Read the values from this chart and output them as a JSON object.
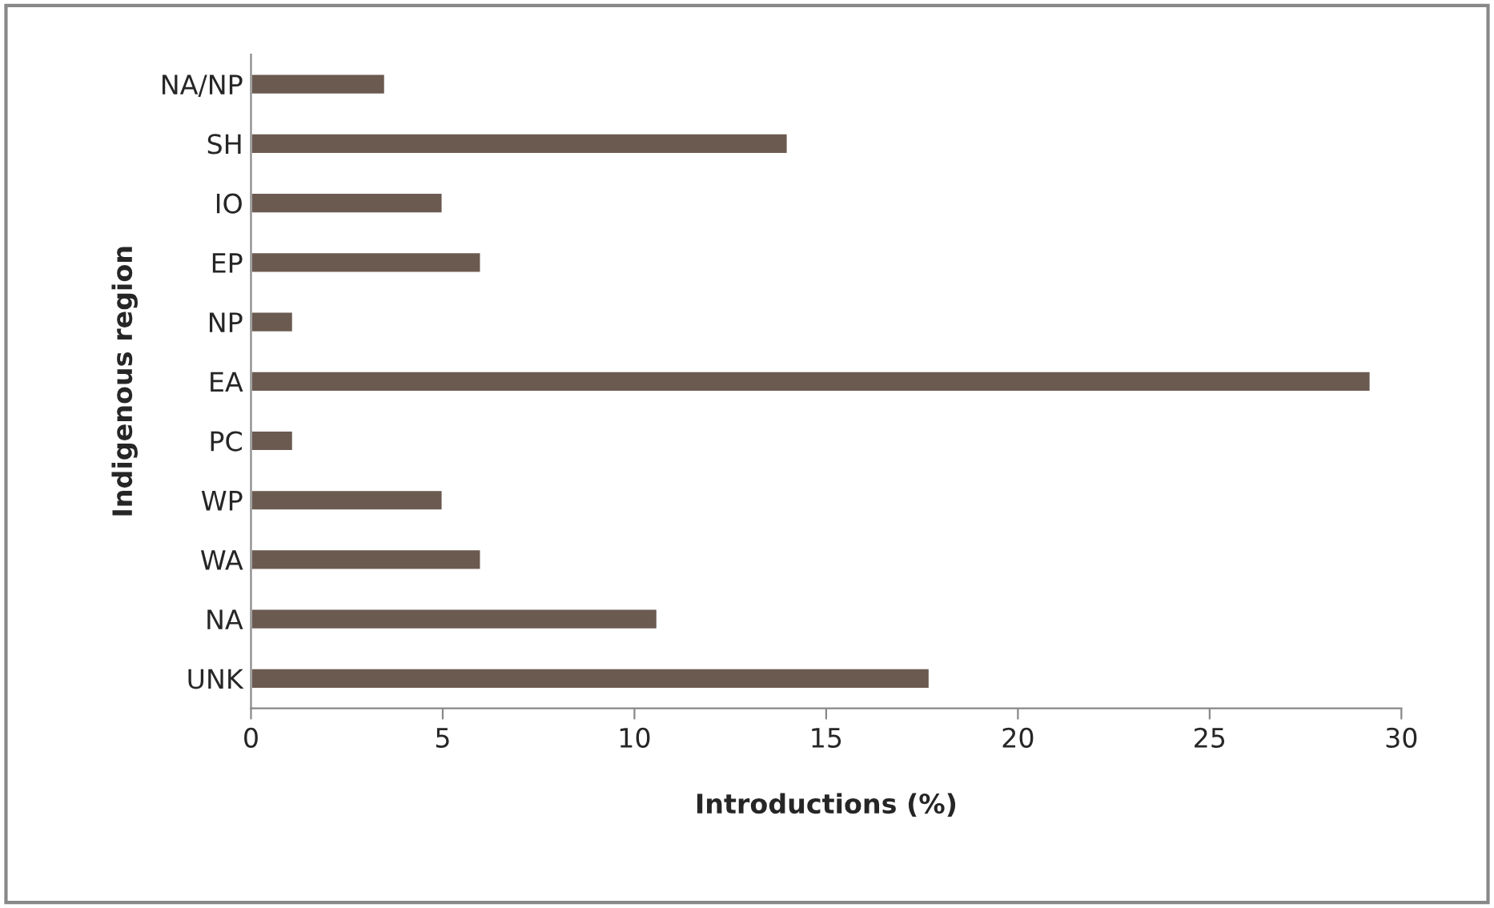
{
  "chart_data": {
    "type": "bar",
    "orientation": "horizontal",
    "xlabel": "Introductions (%)",
    "ylabel": "Indigenous region",
    "categories": [
      "NA/NP",
      "SH",
      "IO",
      "EP",
      "NP",
      "EA",
      "PC",
      "WP",
      "WA",
      "NA",
      "UNK"
    ],
    "values": [
      3.5,
      14.0,
      5.0,
      6.0,
      1.1,
      29.2,
      1.1,
      5.0,
      6.0,
      10.6,
      17.7
    ],
    "color": "#6b5a50",
    "xlim": [
      0,
      30
    ],
    "xticks": [
      0,
      5,
      10,
      15,
      20,
      25,
      30
    ],
    "grid": false,
    "legend": false
  }
}
